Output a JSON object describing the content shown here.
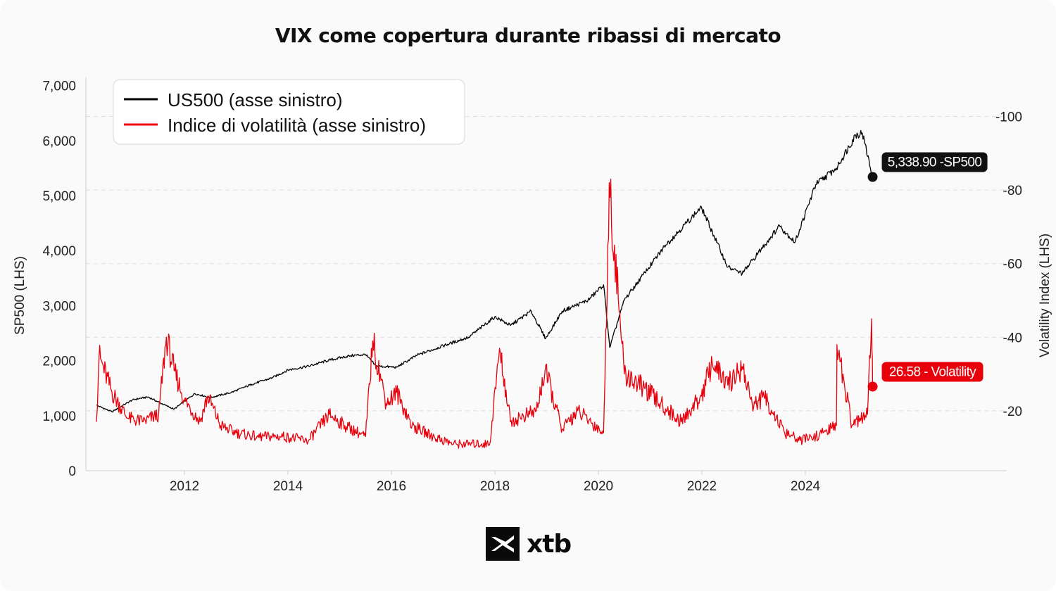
{
  "header": {
    "title": "VIX come copertura durante ribassi di mercato"
  },
  "brand": {
    "logo_icon": "xtb-logo-icon",
    "name": "xtb"
  },
  "chart_data": {
    "type": "line",
    "title": "VIX come copertura durante ribassi di mercato",
    "ylabel": "SP500 (LHS)",
    "y2label": "Volatility Index (LHS)",
    "ylim": [
      0,
      7000
    ],
    "y2lim": [
      0,
      100
    ],
    "y_ticks": [
      "0",
      "1,000",
      "2,000",
      "3,000",
      "4,000",
      "5,000",
      "6,000",
      "7,000"
    ],
    "y2_ticks": [
      "-20",
      "-40",
      "-60",
      "-80",
      "-100"
    ],
    "x_ticks": [
      "2012",
      "2014",
      "2016",
      "2018",
      "2020",
      "2022",
      "2024"
    ],
    "legend_position": "top-left",
    "grid": "horizontal dashed",
    "series": [
      {
        "name": "US500 (asse sinistro)",
        "axis": "left",
        "color": "#000000",
        "points": [
          [
            2010.3,
            1190
          ],
          [
            2010.6,
            1070
          ],
          [
            2011.0,
            1290
          ],
          [
            2011.3,
            1340
          ],
          [
            2011.6,
            1200
          ],
          [
            2011.8,
            1120
          ],
          [
            2012.2,
            1400
          ],
          [
            2012.5,
            1330
          ],
          [
            2012.9,
            1420
          ],
          [
            2013.3,
            1570
          ],
          [
            2013.7,
            1690
          ],
          [
            2014.0,
            1830
          ],
          [
            2014.4,
            1900
          ],
          [
            2014.8,
            2010
          ],
          [
            2015.2,
            2090
          ],
          [
            2015.5,
            2110
          ],
          [
            2015.7,
            1900
          ],
          [
            2016.1,
            1880
          ],
          [
            2016.5,
            2100
          ],
          [
            2017.0,
            2270
          ],
          [
            2017.5,
            2430
          ],
          [
            2018.0,
            2800
          ],
          [
            2018.3,
            2640
          ],
          [
            2018.7,
            2900
          ],
          [
            2018.98,
            2400
          ],
          [
            2019.3,
            2900
          ],
          [
            2019.8,
            3100
          ],
          [
            2020.1,
            3380
          ],
          [
            2020.22,
            2240
          ],
          [
            2020.5,
            3100
          ],
          [
            2020.9,
            3600
          ],
          [
            2021.3,
            4100
          ],
          [
            2021.7,
            4500
          ],
          [
            2021.99,
            4790
          ],
          [
            2022.5,
            3700
          ],
          [
            2022.78,
            3580
          ],
          [
            2023.0,
            3850
          ],
          [
            2023.5,
            4450
          ],
          [
            2023.8,
            4150
          ],
          [
            2024.2,
            5200
          ],
          [
            2024.6,
            5500
          ],
          [
            2024.97,
            6100
          ],
          [
            2025.1,
            6140
          ],
          [
            2025.3,
            5338.9
          ]
        ]
      },
      {
        "name": "Indice di volatilità (asse sinistro)",
        "axis": "right",
        "color": "#e8000b",
        "points": [
          [
            2010.3,
            17
          ],
          [
            2010.35,
            35
          ],
          [
            2010.6,
            25
          ],
          [
            2010.9,
            18
          ],
          [
            2011.2,
            17
          ],
          [
            2011.5,
            19
          ],
          [
            2011.65,
            40
          ],
          [
            2011.8,
            31
          ],
          [
            2012.0,
            23
          ],
          [
            2012.3,
            17
          ],
          [
            2012.45,
            24
          ],
          [
            2012.7,
            16
          ],
          [
            2013.0,
            14
          ],
          [
            2013.4,
            13
          ],
          [
            2013.9,
            13
          ],
          [
            2014.4,
            12
          ],
          [
            2014.8,
            19
          ],
          [
            2015.1,
            16
          ],
          [
            2015.5,
            13
          ],
          [
            2015.64,
            39
          ],
          [
            2015.9,
            22
          ],
          [
            2016.1,
            25
          ],
          [
            2016.4,
            16
          ],
          [
            2016.8,
            13
          ],
          [
            2017.2,
            11
          ],
          [
            2017.9,
            11
          ],
          [
            2018.09,
            37
          ],
          [
            2018.3,
            17
          ],
          [
            2018.8,
            20
          ],
          [
            2018.97,
            31
          ],
          [
            2019.3,
            15
          ],
          [
            2019.6,
            20
          ],
          [
            2020.1,
            14
          ],
          [
            2020.21,
            82
          ],
          [
            2020.5,
            30
          ],
          [
            2020.9,
            26
          ],
          [
            2021.2,
            22
          ],
          [
            2021.6,
            17
          ],
          [
            2021.99,
            24
          ],
          [
            2022.2,
            33
          ],
          [
            2022.5,
            27
          ],
          [
            2022.78,
            32
          ],
          [
            2023.0,
            21
          ],
          [
            2023.2,
            24
          ],
          [
            2023.6,
            14
          ],
          [
            2023.9,
            12
          ],
          [
            2024.2,
            13
          ],
          [
            2024.6,
            16
          ],
          [
            2024.61,
            38
          ],
          [
            2024.9,
            16
          ],
          [
            2025.2,
            19
          ],
          [
            2025.28,
            45
          ],
          [
            2025.3,
            26.58
          ]
        ]
      }
    ],
    "annotations": [
      {
        "series": "US500 (asse sinistro)",
        "label": "5,338.90 -SP500"
      },
      {
        "series": "Indice di volatilità (asse sinistro)",
        "label": "26.58 - Volatility"
      }
    ]
  }
}
